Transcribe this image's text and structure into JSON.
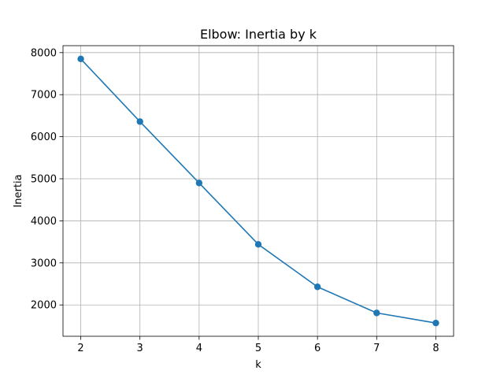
{
  "chart_data": {
    "type": "line",
    "title": "Elbow: Inertia by k",
    "xlabel": "k",
    "ylabel": "Inertia",
    "x": [
      2,
      3,
      4,
      5,
      6,
      7,
      8
    ],
    "series": [
      {
        "values": [
          7850,
          6360,
          4900,
          3440,
          2430,
          1810,
          1570
        ],
        "color": "#1f77b4",
        "marker": "circle"
      }
    ],
    "xlim": [
      1.7,
      8.3
    ],
    "ylim": [
      1255,
      8165
    ],
    "xticks": [
      2,
      3,
      4,
      5,
      6,
      7,
      8
    ],
    "yticks": [
      2000,
      3000,
      4000,
      5000,
      6000,
      7000,
      8000
    ],
    "xtick_labels": [
      "2",
      "3",
      "4",
      "5",
      "6",
      "7",
      "8"
    ],
    "ytick_labels": [
      "2000",
      "3000",
      "4000",
      "5000",
      "6000",
      "7000",
      "8000"
    ],
    "grid": true,
    "legend": "none"
  }
}
